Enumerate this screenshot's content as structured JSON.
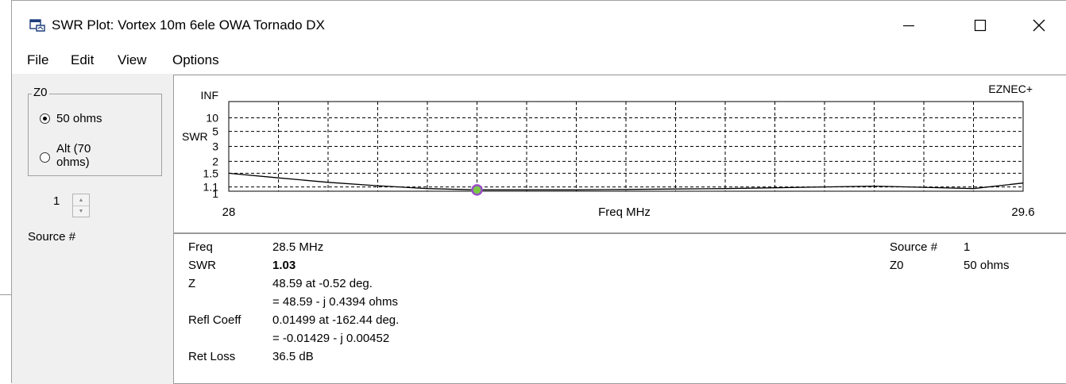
{
  "window": {
    "title": "SWR Plot: Vortex 10m 6ele OWA Tornado DX",
    "controls": [
      "minimize",
      "maximize",
      "close"
    ]
  },
  "menu": [
    "File",
    "Edit",
    "View",
    "Options"
  ],
  "z0_group": {
    "legend": "Z0",
    "options": [
      {
        "label": "50 ohms",
        "selected": true
      },
      {
        "label_line1": "Alt (70",
        "label_line2": "ohms)",
        "selected": false
      }
    ]
  },
  "source_spinner": {
    "value": "1",
    "label": "Source #"
  },
  "plot": {
    "brand": "EZNEC+",
    "ylabel": "SWR",
    "xlabel": "Freq MHz",
    "y_ticks": [
      "INF",
      "10",
      "5",
      "3",
      "2",
      "1.5",
      "1.1",
      "1"
    ],
    "x_start": "28",
    "x_end": "29.6"
  },
  "chart_data": {
    "type": "line",
    "xlabel": "Freq MHz",
    "ylabel": "SWR",
    "xlim": [
      28,
      29.6
    ],
    "y_scale": "reflection-coefficient (SWR)",
    "grid": true,
    "series": [
      {
        "x": [
          28.0,
          28.1,
          28.2,
          28.3,
          28.4,
          28.5,
          28.6,
          28.7,
          28.8,
          28.9,
          29.0,
          29.1,
          29.2,
          29.3,
          29.4,
          29.5,
          29.6
        ],
        "y": [
          1.5,
          1.35,
          1.22,
          1.13,
          1.06,
          1.03,
          1.03,
          1.03,
          1.04,
          1.05,
          1.06,
          1.08,
          1.1,
          1.12,
          1.09,
          1.06,
          1.2
        ]
      }
    ],
    "marker": {
      "x": 28.5,
      "y": 1.03
    }
  },
  "readout": {
    "rows": [
      {
        "label": "Freq",
        "value": "28.5 MHz"
      },
      {
        "label": "SWR",
        "value": "1.03"
      },
      {
        "label": "Z",
        "value": "48.59 at -0.52 deg."
      },
      {
        "label": "",
        "value": "= 48.59 - j 0.4394 ohms"
      },
      {
        "label": "Refl Coeff",
        "value": "0.01499 at -162.44 deg."
      },
      {
        "label": "",
        "value": "= -0.01429 - j 0.00452"
      },
      {
        "label": "Ret Loss",
        "value": "36.5 dB"
      }
    ],
    "right_rows": [
      {
        "label": "Source #",
        "value": "1"
      },
      {
        "label": "Z0",
        "value": "50 ohms"
      }
    ]
  }
}
